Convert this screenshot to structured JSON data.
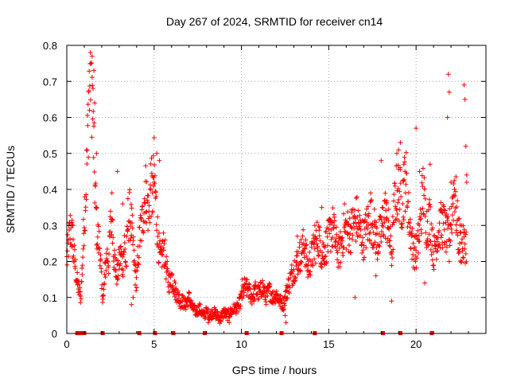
{
  "chart_data": {
    "type": "scatter",
    "title": "Day 267 of 2024, SRMTID for receiver cn14",
    "xlabel": "GPS time / hours",
    "ylabel": "SRMTID / TECUs",
    "xlim": [
      0,
      24
    ],
    "ylim": [
      0,
      0.8
    ],
    "xticks": [
      0,
      5,
      10,
      15,
      20
    ],
    "xtick_labels": [
      "0",
      "5",
      "10",
      "15",
      "20"
    ],
    "yticks": [
      0,
      0.1,
      0.2,
      0.3,
      0.4,
      0.5,
      0.6,
      0.7,
      0.8
    ],
    "ytick_labels": [
      "0",
      "0.1",
      "0.2",
      "0.3",
      "0.4",
      "0.5",
      "0.6",
      "0.7",
      "0.8"
    ],
    "grid": true,
    "marker": "+",
    "color": "#ff0000",
    "series": [
      {
        "name": "SRMTID",
        "x": [
          0.0,
          0.1,
          0.2,
          0.3,
          0.4,
          0.5,
          0.6,
          0.7,
          0.8,
          0.9,
          1.0,
          1.1,
          1.2,
          1.3,
          1.4,
          1.5,
          1.6,
          1.7,
          1.8,
          1.9,
          2.0,
          2.1,
          2.2,
          2.3,
          2.4,
          2.5,
          2.6,
          2.7,
          2.8,
          2.9,
          3.0,
          3.1,
          3.2,
          3.3,
          3.4,
          3.5,
          3.6,
          3.7,
          3.8,
          3.9,
          4.0,
          4.1,
          4.2,
          4.3,
          4.4,
          4.5,
          4.6,
          4.7,
          4.8,
          4.9,
          5.0,
          5.1,
          5.2,
          5.3,
          5.4,
          5.5,
          5.6,
          5.7,
          5.8,
          5.9,
          6.0,
          6.2,
          6.4,
          6.6,
          6.8,
          7.0,
          7.2,
          7.4,
          7.6,
          7.8,
          8.0,
          8.2,
          8.4,
          8.6,
          8.8,
          9.0,
          9.2,
          9.4,
          9.6,
          9.8,
          10.0,
          10.2,
          10.4,
          10.6,
          10.8,
          11.0,
          11.2,
          11.4,
          11.6,
          11.8,
          12.0,
          12.2,
          12.4,
          12.6,
          12.8,
          13.0,
          13.2,
          13.4,
          13.6,
          13.8,
          14.0,
          14.2,
          14.4,
          14.6,
          14.8,
          15.0,
          15.2,
          15.4,
          15.6,
          15.8,
          16.0,
          16.2,
          16.4,
          16.6,
          16.8,
          17.0,
          17.2,
          17.4,
          17.6,
          17.8,
          18.0,
          18.2,
          18.4,
          18.6,
          18.8,
          19.0,
          19.2,
          19.4,
          19.6,
          19.8,
          20.0,
          20.2,
          20.4,
          20.6,
          20.8,
          21.0,
          21.2,
          21.4,
          21.6,
          21.8,
          22.0,
          22.2,
          22.4,
          22.6,
          22.8
        ],
        "y": [
          0.2,
          0.25,
          0.29,
          0.27,
          0.22,
          0.18,
          0.14,
          0.12,
          0.1,
          0.2,
          0.33,
          0.4,
          0.55,
          0.76,
          0.74,
          0.6,
          0.42,
          0.3,
          0.26,
          0.24,
          0.12,
          0.1,
          0.18,
          0.22,
          0.2,
          0.3,
          0.34,
          0.22,
          0.18,
          0.16,
          0.2,
          0.22,
          0.19,
          0.25,
          0.18,
          0.32,
          0.33,
          0.3,
          0.24,
          0.17,
          0.14,
          0.22,
          0.28,
          0.3,
          0.35,
          0.4,
          0.37,
          0.32,
          0.42,
          0.38,
          0.45,
          0.36,
          0.28,
          0.22,
          0.2,
          0.24,
          0.23,
          0.18,
          0.15,
          0.14,
          0.16,
          0.12,
          0.1,
          0.09,
          0.08,
          0.1,
          0.07,
          0.06,
          0.07,
          0.05,
          0.06,
          0.05,
          0.06,
          0.05,
          0.04,
          0.06,
          0.05,
          0.06,
          0.07,
          0.07,
          0.1,
          0.13,
          0.12,
          0.1,
          0.12,
          0.11,
          0.13,
          0.1,
          0.12,
          0.1,
          0.11,
          0.09,
          0.08,
          0.12,
          0.15,
          0.18,
          0.2,
          0.22,
          0.25,
          0.18,
          0.21,
          0.24,
          0.27,
          0.22,
          0.24,
          0.26,
          0.3,
          0.25,
          0.22,
          0.27,
          0.29,
          0.28,
          0.3,
          0.32,
          0.28,
          0.26,
          0.3,
          0.32,
          0.29,
          0.25,
          0.28,
          0.34,
          0.3,
          0.22,
          0.38,
          0.4,
          0.36,
          0.44,
          0.32,
          0.24,
          0.22,
          0.28,
          0.4,
          0.3,
          0.32,
          0.22,
          0.27,
          0.3,
          0.3,
          0.26,
          0.31,
          0.42,
          0.28,
          0.24,
          0.25
        ],
        "extra_points": [
          [
            0.35,
            0.3
          ],
          [
            1.35,
            0.78
          ],
          [
            1.45,
            0.77
          ],
          [
            1.55,
            0.73
          ],
          [
            1.6,
            0.64
          ],
          [
            1.3,
            0.62
          ],
          [
            1.7,
            0.5
          ],
          [
            2.9,
            0.45
          ],
          [
            3.2,
            0.36
          ],
          [
            5.15,
            0.5
          ],
          [
            5.3,
            0.48
          ],
          [
            5.0,
            0.42
          ],
          [
            4.9,
            0.39
          ],
          [
            3.7,
            0.08
          ],
          [
            3.8,
            0.1
          ],
          [
            6.5,
            0.07
          ],
          [
            8.1,
            0.03
          ],
          [
            9.3,
            0.03
          ],
          [
            10.05,
            0.15
          ],
          [
            12.5,
            0.05
          ],
          [
            12.55,
            0.03
          ],
          [
            13.2,
            0.27
          ],
          [
            14.2,
            0.3
          ],
          [
            14.6,
            0.35
          ],
          [
            15.3,
            0.33
          ],
          [
            15.9,
            0.36
          ],
          [
            16.5,
            0.1
          ],
          [
            17.4,
            0.39
          ],
          [
            18.0,
            0.48
          ],
          [
            18.3,
            0.36
          ],
          [
            18.9,
            0.5
          ],
          [
            19.0,
            0.51
          ],
          [
            19.1,
            0.53
          ],
          [
            19.3,
            0.47
          ],
          [
            18.6,
            0.09
          ],
          [
            17.7,
            0.16
          ],
          [
            20.0,
            0.57
          ],
          [
            20.2,
            0.45
          ],
          [
            20.5,
            0.14
          ],
          [
            20.8,
            0.47
          ],
          [
            21.8,
            0.6
          ],
          [
            21.85,
            0.72
          ],
          [
            21.9,
            0.67
          ],
          [
            22.0,
            0.42
          ],
          [
            22.3,
            0.28
          ],
          [
            22.6,
            0.3
          ],
          [
            22.75,
            0.69
          ],
          [
            22.8,
            0.65
          ],
          [
            22.85,
            0.52
          ],
          [
            22.9,
            0.44
          ],
          [
            22.9,
            0.42
          ],
          [
            21.9,
            0.2
          ],
          [
            22.5,
            0.25
          ]
        ]
      }
    ],
    "gap_markers_x": [
      0.6,
      0.75,
      0.85,
      1.0,
      2.05,
      4.15,
      5.05,
      6.1,
      7.9,
      10.3,
      12.3,
      14.2,
      18.1,
      19.1,
      20.9
    ]
  }
}
